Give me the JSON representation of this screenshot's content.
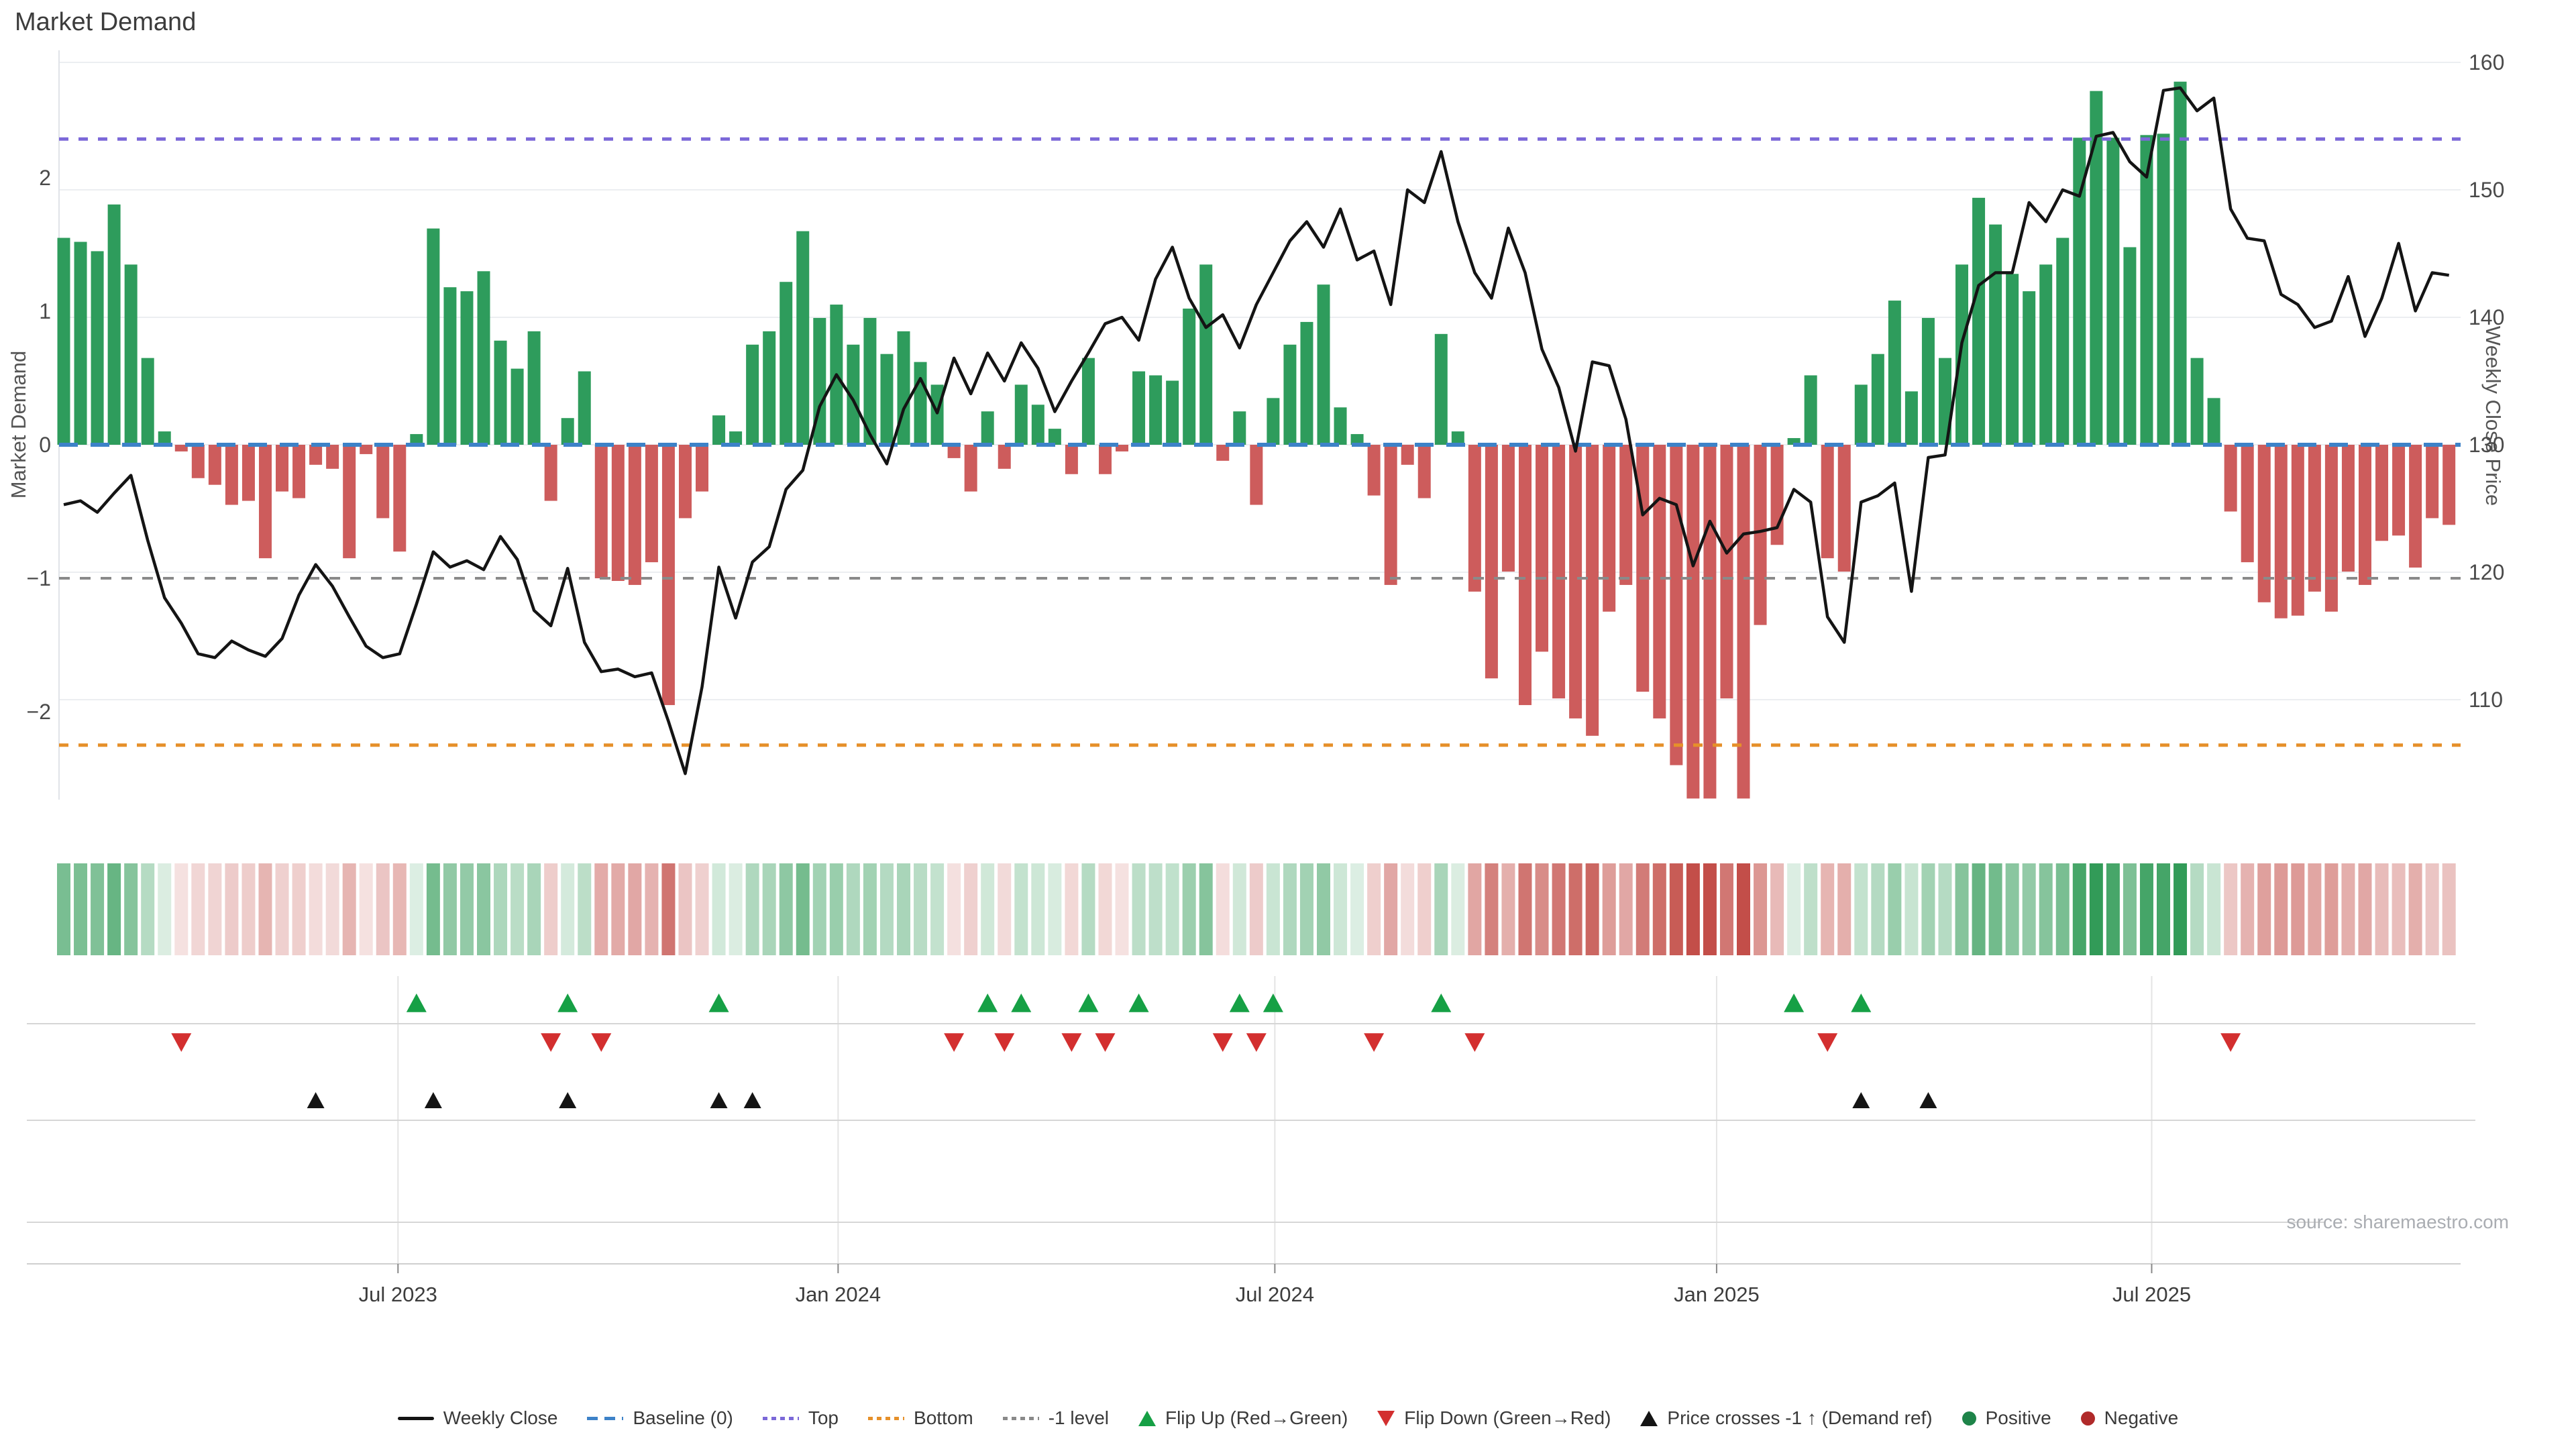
{
  "title": "Market Demand",
  "source": "source: sharemaestro.com",
  "chart_data": {
    "type": "combo-bar-line",
    "title": "Market Demand",
    "x": {
      "unit": "week",
      "count": 143,
      "tick_labels": [
        "Jul 2023",
        "Jan 2024",
        "Jul 2024",
        "Jan 2025",
        "Jul 2025"
      ],
      "tick_week_positions": [
        19.9,
        46.1,
        72.1,
        98.4,
        124.3
      ]
    },
    "left_axis": {
      "label": "Market Demand",
      "ticks": [
        2,
        1,
        0,
        -1,
        -2
      ],
      "range": [
        -2.95,
        2.95
      ]
    },
    "right_axis": {
      "label": "Weekly Close Price",
      "ticks": [
        160,
        150,
        140,
        130,
        120,
        110
      ],
      "range": [
        101,
        161
      ]
    },
    "series": [
      {
        "name": "Market Demand",
        "type": "bar",
        "axis": "left",
        "positive_color": "#2e9c5c",
        "negative_color": "#cd5c5c",
        "values": [
          1.55,
          1.52,
          1.45,
          1.8,
          1.35,
          0.65,
          0.1,
          -0.05,
          -0.25,
          -0.3,
          -0.45,
          -0.42,
          -0.85,
          -0.35,
          -0.4,
          -0.15,
          -0.18,
          -0.85,
          -0.07,
          -0.55,
          -0.8,
          0.08,
          1.62,
          1.18,
          1.15,
          1.3,
          0.78,
          0.57,
          0.85,
          -0.42,
          0.2,
          0.55,
          -1.0,
          -1.02,
          -1.05,
          -0.88,
          -1.95,
          -0.55,
          -0.35,
          0.22,
          0.1,
          0.75,
          0.85,
          1.22,
          1.6,
          0.95,
          1.05,
          0.75,
          0.95,
          0.68,
          0.85,
          0.62,
          0.45,
          -0.1,
          -0.35,
          0.25,
          -0.18,
          0.45,
          0.3,
          0.12,
          -0.22,
          0.65,
          -0.22,
          -0.05,
          0.55,
          0.52,
          0.48,
          1.02,
          1.35,
          -0.12,
          0.25,
          -0.45,
          0.35,
          0.75,
          0.92,
          1.2,
          0.28,
          0.08,
          -0.38,
          -1.05,
          -0.15,
          -0.4,
          0.83,
          0.1,
          -1.1,
          -1.75,
          -0.95,
          -1.95,
          -1.55,
          -1.9,
          -2.05,
          -2.18,
          -1.25,
          -1.05,
          -1.85,
          -2.05,
          -2.4,
          -2.65,
          -2.65,
          -1.9,
          -2.65,
          -1.35,
          -0.75,
          0.05,
          0.52,
          -0.85,
          -0.95,
          0.45,
          0.68,
          1.08,
          0.4,
          0.95,
          0.65,
          1.35,
          1.85,
          1.65,
          1.28,
          1.15,
          1.35,
          1.55,
          2.3,
          2.65,
          2.3,
          1.48,
          2.32,
          2.33,
          2.72,
          0.65,
          0.35,
          -0.5,
          -0.88,
          -1.18,
          -1.3,
          -1.28,
          -1.1,
          -1.25,
          -0.95,
          -1.05,
          -0.72,
          -0.68,
          -0.92,
          -0.55,
          -0.6
        ]
      },
      {
        "name": "Weekly Close",
        "type": "line",
        "axis": "right",
        "color": "#141414",
        "values": [
          125.3,
          125.6,
          124.7,
          126.2,
          127.6,
          122.5,
          118.0,
          116.0,
          113.6,
          113.3,
          114.6,
          113.9,
          113.4,
          114.8,
          118.2,
          120.6,
          118.9,
          116.5,
          114.2,
          113.3,
          113.6,
          117.5,
          121.6,
          120.4,
          120.9,
          120.2,
          122.8,
          121.0,
          117.0,
          115.8,
          120.3,
          114.5,
          112.2,
          112.4,
          111.8,
          112.1,
          108.3,
          104.2,
          111.0,
          120.4,
          116.4,
          120.8,
          122.0,
          126.5,
          128.0,
          133.0,
          135.5,
          133.5,
          130.8,
          128.5,
          132.8,
          135.2,
          132.5,
          136.8,
          134.0,
          137.2,
          135.0,
          138.0,
          136.0,
          132.6,
          135.0,
          137.2,
          139.5,
          140.0,
          138.2,
          143.0,
          145.5,
          141.5,
          139.2,
          140.2,
          137.6,
          141.0,
          143.5,
          146.0,
          147.5,
          145.5,
          148.5,
          144.5,
          145.2,
          141.0,
          150.0,
          149.0,
          153.0,
          147.5,
          143.5,
          141.5,
          147.0,
          143.5,
          137.5,
          134.5,
          129.5,
          136.5,
          136.2,
          132.0,
          124.5,
          125.8,
          125.3,
          120.5,
          124.0,
          121.5,
          123.0,
          123.2,
          123.5,
          126.5,
          125.5,
          116.5,
          114.5,
          125.5,
          126.0,
          127.0,
          118.5,
          129.0,
          129.2,
          138.0,
          142.5,
          143.5,
          143.5,
          149.0,
          147.5,
          150.0,
          149.5,
          154.2,
          154.5,
          152.2,
          151.0,
          157.8,
          158.0,
          156.2,
          157.2,
          148.5,
          146.2,
          146.0,
          141.8,
          141.0,
          139.2,
          139.7,
          143.2,
          138.5,
          141.5,
          145.8,
          140.5,
          143.5,
          143.3
        ]
      }
    ],
    "reference_lines": [
      {
        "name": "Baseline (0)",
        "axis": "left",
        "value": 0,
        "style": "dashed",
        "color": "#3d82c8"
      },
      {
        "name": "Top",
        "axis": "left",
        "value": 2.29,
        "style": "dotted",
        "color": "#7b68d8"
      },
      {
        "name": "Bottom",
        "axis": "left",
        "value": -2.25,
        "style": "dotted",
        "color": "#e6902a"
      },
      {
        "name": "-1 level",
        "axis": "left",
        "value": -1,
        "style": "dotted",
        "color": "#8a8a8a"
      }
    ],
    "markers": {
      "flip_up": {
        "label": "Flip Up (Red→Green)",
        "color": "#16a045",
        "weeks": [
          21,
          30,
          39,
          55,
          57,
          61,
          64,
          70,
          72,
          82,
          103,
          107
        ]
      },
      "flip_down": {
        "label": "Flip Down (Green→Red)",
        "color": "#d32f2f",
        "weeks": [
          7,
          29,
          32,
          53,
          56,
          60,
          62,
          69,
          71,
          78,
          84,
          105,
          129
        ]
      },
      "price_cross": {
        "label": "Price crosses -1 ↑ (Demand ref)",
        "color": "#141414",
        "weeks": [
          15,
          22,
          30,
          39,
          41,
          107,
          111
        ]
      }
    },
    "heatmap": {
      "derived_from": "Market Demand values",
      "positive_color": "#27964f",
      "negative_color": "#c0453f"
    }
  },
  "legend": {
    "items": [
      {
        "label": "Weekly Close",
        "swatch": "line",
        "color": "#141414"
      },
      {
        "label": "Baseline (0)",
        "swatch": "dash",
        "color": "#3d82c8"
      },
      {
        "label": "Top",
        "swatch": "dots",
        "color": "#7b68d8"
      },
      {
        "label": "Bottom",
        "swatch": "dots",
        "color": "#e6902a"
      },
      {
        "label": "-1 level",
        "swatch": "dots",
        "color": "#8a8a8a"
      },
      {
        "label": "Flip Up (Red→Green)",
        "swatch": "tri-up",
        "color": "#16a045"
      },
      {
        "label": "Flip Down (Green→Red)",
        "swatch": "tri-down",
        "color": "#d32f2f"
      },
      {
        "label": "Price crosses -1 ↑ (Demand ref)",
        "swatch": "tri-up",
        "color": "#141414"
      },
      {
        "label": "Positive",
        "swatch": "circle",
        "color": "#1e8449"
      },
      {
        "label": "Negative",
        "swatch": "circle",
        "color": "#b02a2a"
      }
    ]
  }
}
